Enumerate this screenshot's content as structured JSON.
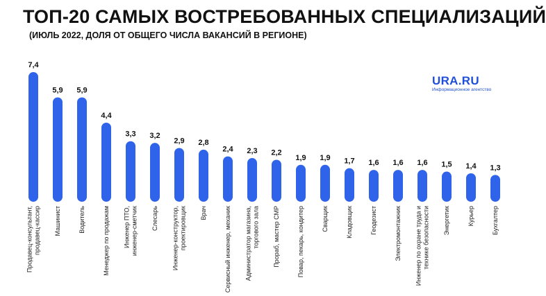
{
  "header": {
    "title": "ТОП-20 САМЫХ ВОСТРЕБОВАННЫХ СПЕЦИАЛИЗАЦИЙ",
    "subtitle": "(ИЮЛЬ 2022, ДОЛЯ ОТ ОБЩЕГО ЧИСЛА ВАКАНСИЙ В РЕГИОНЕ)"
  },
  "logo": {
    "brand": "URA.RU",
    "tagline": "Информационное агентство"
  },
  "colors": {
    "bar": "#2f63ea",
    "text": "#111111",
    "brand": "#1f4fd8"
  },
  "chart_data": {
    "type": "bar",
    "title": "ТОП-20 САМЫХ ВОСТРЕБОВАННЫХ СПЕЦИАЛИЗАЦИЙ",
    "subtitle": "(ИЮЛЬ 2022, ДОЛЯ ОТ ОБЩЕГО ЧИСЛА ВАКАНСИЙ В РЕГИОНЕ)",
    "grid": false,
    "legend": "none",
    "ylim": [
      0,
      7.4
    ],
    "categories": [
      [
        "Продавец-консультант,",
        "продавец-кассир"
      ],
      [
        "Машинист"
      ],
      [
        "Водитель"
      ],
      [
        "Менеджер по продажам"
      ],
      [
        "Инженер ПТО,",
        "инженер-сметчик"
      ],
      [
        "Слесарь"
      ],
      [
        "Инженер-конструктор,",
        "проектировщик"
      ],
      [
        "Врач"
      ],
      [
        "Сервисный инженер, механик"
      ],
      [
        "Администратор магазина,",
        "торгового зала"
      ],
      [
        "Прораб, мастер СМР"
      ],
      [
        "Повар, пекарь, кондитер"
      ],
      [
        "Сварщик"
      ],
      [
        "Кладовщик"
      ],
      [
        "Геодезист"
      ],
      [
        "Электромонтажник"
      ],
      [
        "Инженер по охране труда и",
        "технике безопасности"
      ],
      [
        "Энергетик"
      ],
      [
        "Курьер"
      ],
      [
        "Бухгалтер"
      ]
    ],
    "values": [
      7.4,
      5.9,
      5.9,
      4.4,
      3.3,
      3.2,
      2.9,
      2.8,
      2.4,
      2.3,
      2.2,
      1.9,
      1.9,
      1.7,
      1.6,
      1.6,
      1.6,
      1.5,
      1.4,
      1.3
    ],
    "value_labels": [
      "7,4",
      "5,9",
      "5,9",
      "4,4",
      "3,3",
      "3,2",
      "2,9",
      "2,8",
      "2,4",
      "2,3",
      "2,2",
      "1,9",
      "1,9",
      "1,7",
      "1,6",
      "1,6",
      "1,6",
      "1,5",
      "1,4",
      "1,3"
    ]
  }
}
